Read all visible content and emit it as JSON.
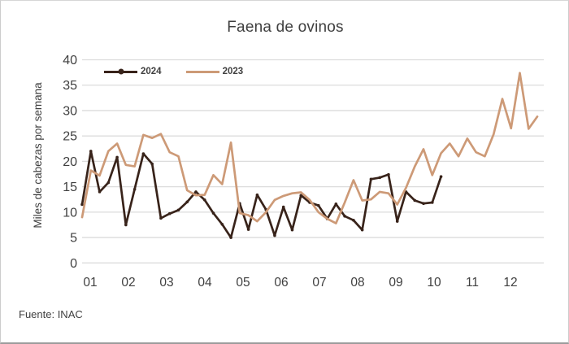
{
  "chart": {
    "title": "Faena de ovinos",
    "y_axis_title": "Miles de cabezas por semana",
    "source": "Fuente: INAC"
  },
  "chart_data": {
    "type": "line",
    "title": "Faena de ovinos",
    "xlabel": "",
    "ylabel": "Miles de cabezas por semana",
    "x_unit": "semana del año (weekly points, labeled by month)",
    "x_tick_labels": [
      "01",
      "02",
      "03",
      "04",
      "05",
      "06",
      "07",
      "08",
      "09",
      "10",
      "11",
      "12"
    ],
    "ylim": [
      0,
      40
    ],
    "y_ticks": [
      0,
      5,
      10,
      15,
      20,
      25,
      30,
      35,
      40
    ],
    "grid": "horizontal",
    "legend_position": "top-left-inside",
    "source": "Fuente: INAC",
    "colors": {
      "grid": "#dcdcdc",
      "tick_text": "#3f3f3f"
    },
    "series": [
      {
        "name": "2024",
        "color": "#38231a",
        "marker": "dot",
        "values": [
          11.5,
          22.0,
          14.0,
          15.8,
          20.8,
          7.5,
          14.5,
          21.5,
          19.5,
          8.8,
          9.7,
          10.4,
          12.0,
          14.0,
          12.4,
          9.8,
          7.6,
          5.0,
          11.7,
          6.6,
          13.4,
          10.5,
          5.4,
          11.0,
          6.5,
          13.3,
          11.9,
          11.3,
          8.7,
          11.6,
          9.2,
          8.4,
          6.5,
          16.5,
          16.8,
          17.4,
          8.2,
          14.0,
          12.3,
          11.7,
          11.9,
          17.0
        ]
      },
      {
        "name": "2023",
        "color": "#cd9a77",
        "marker": "none",
        "values": [
          9.0,
          18.2,
          17.2,
          22.0,
          23.5,
          19.3,
          19.0,
          25.2,
          24.6,
          25.4,
          21.8,
          21.0,
          14.3,
          13.3,
          13.4,
          17.3,
          15.5,
          23.7,
          9.8,
          9.4,
          8.2,
          10.0,
          12.4,
          13.2,
          13.7,
          13.9,
          12.4,
          10.0,
          8.7,
          7.8,
          11.9,
          16.3,
          12.3,
          12.5,
          14.0,
          13.7,
          11.5,
          14.8,
          19.0,
          22.4,
          17.3,
          21.6,
          23.5,
          21.0,
          24.5,
          21.8,
          21.0,
          25.3,
          32.3,
          26.5,
          37.4,
          26.4,
          28.8
        ]
      }
    ]
  }
}
